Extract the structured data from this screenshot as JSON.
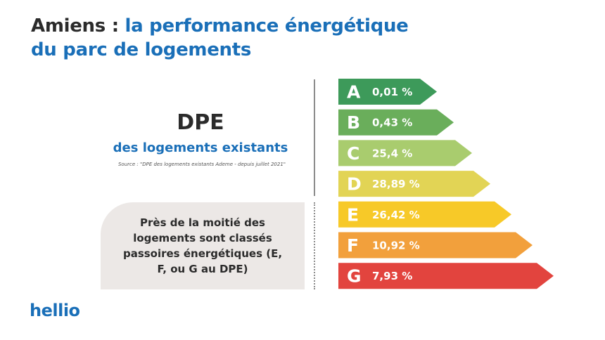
{
  "header": {
    "title_city": "Amiens : ",
    "title_line1": "la performance énergétique",
    "title_line2": "du parc de logements"
  },
  "dpe": {
    "heading": "DPE",
    "subheading": "des logements existants",
    "source": "Source : \"DPE des logements existants Ademe - depuis juillet 2021\""
  },
  "note": {
    "text": "Près de la moitié des logements sont classés passoires énergétiques (E, F, ou G au DPE)"
  },
  "brand": {
    "name": "hellio"
  },
  "chart_data": {
    "type": "bar",
    "categories": [
      "A",
      "B",
      "C",
      "D",
      "E",
      "F",
      "G"
    ],
    "values": [
      0.01,
      0.43,
      25.4,
      28.89,
      26.42,
      10.92,
      7.93
    ],
    "value_labels": [
      "0,01 %",
      "0,43 %",
      "25,4 %",
      "28,89 %",
      "26,42 %",
      "10,92 %",
      "7,93 %"
    ],
    "colors": [
      "#3d9a5a",
      "#6aae5b",
      "#a9cc6e",
      "#e2d455",
      "#f7c928",
      "#f2a03c",
      "#e2443e"
    ],
    "title": "",
    "xlabel": "",
    "ylabel": ""
  }
}
